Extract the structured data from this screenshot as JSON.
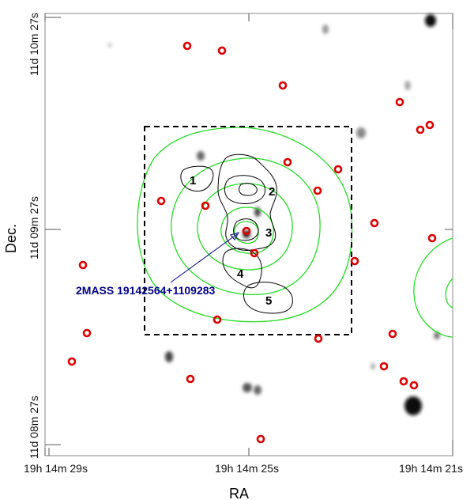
{
  "axes": {
    "xlabel": "RA",
    "ylabel": "Dec.",
    "xticks": [
      "19h 14m 29s",
      "19h 14m 25s",
      "19h 14m 21s"
    ],
    "yticks": [
      "11d 10m 27s",
      "11d 09m 27s",
      "11d 08m 27s"
    ]
  },
  "regions": [
    "1",
    "2",
    "3",
    "4",
    "5"
  ],
  "annotation": {
    "text": "2MASS 19142564+1109283",
    "color": "#00008b"
  },
  "colors": {
    "source_markers": "#e00000",
    "green_contours": "#22dd22",
    "black_contours": "#000000",
    "box": "#000000"
  }
}
